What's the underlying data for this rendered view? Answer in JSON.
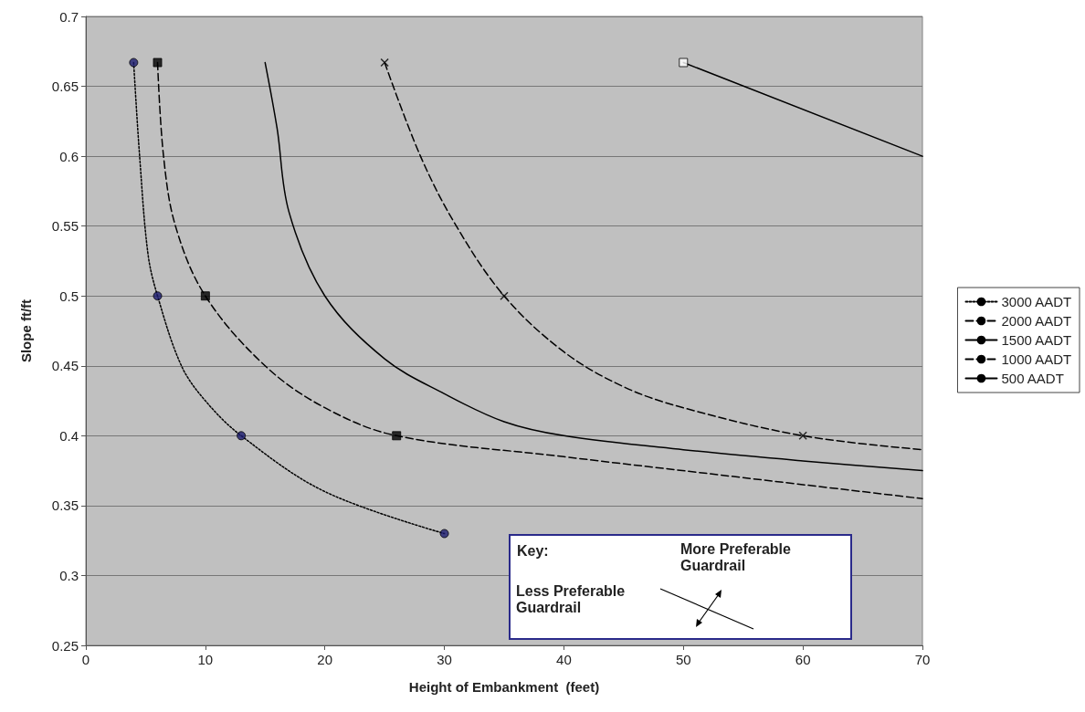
{
  "chart_data": {
    "type": "line",
    "xlabel": "Height of Embankment  (feet)",
    "ylabel": "Slope ft/ft",
    "xlim": [
      0,
      70
    ],
    "xticks": [
      0,
      10,
      20,
      30,
      40,
      50,
      60,
      70
    ],
    "ylim": [
      0.25,
      0.7
    ],
    "yticks": [
      0.25,
      0.3,
      0.35,
      0.4,
      0.45,
      0.5,
      0.55,
      0.6,
      0.65,
      0.7
    ],
    "grid": "y",
    "legend": "right",
    "series": [
      {
        "name": "3000 AADT",
        "color": "#000000",
        "line_style": "dotted",
        "marker": "none",
        "x": [
          4,
          4.5,
          5.2,
          6,
          8,
          10,
          13,
          20,
          30
        ],
        "values": [
          0.667,
          0.6,
          0.53,
          0.5,
          0.45,
          0.425,
          0.4,
          0.36,
          0.33
        ]
      },
      {
        "name": "2000 AADT",
        "color": "#000000",
        "line_style": "dashed",
        "marker": "none",
        "x": [
          6,
          6.5,
          7.5,
          10,
          15,
          20,
          26,
          40,
          55,
          70
        ],
        "values": [
          0.667,
          0.6,
          0.55,
          0.5,
          0.45,
          0.42,
          0.4,
          0.385,
          0.37,
          0.355
        ]
      },
      {
        "name": "1500 AADT",
        "color": "#000000",
        "line_style": "solid",
        "marker": "none",
        "x": [
          15,
          16,
          17,
          20,
          25,
          30,
          35,
          40,
          50,
          60,
          70
        ],
        "values": [
          0.667,
          0.62,
          0.56,
          0.5,
          0.455,
          0.43,
          0.41,
          0.4,
          0.39,
          0.382,
          0.375
        ]
      },
      {
        "name": "1000 AADT",
        "color": "#000000",
        "line_style": "dashed",
        "marker": "none",
        "x": [
          25,
          28,
          31,
          35,
          40,
          45,
          50,
          60,
          70
        ],
        "values": [
          0.667,
          0.6,
          0.55,
          0.5,
          0.46,
          0.435,
          0.42,
          0.4,
          0.39
        ]
      },
      {
        "name": "500 AADT",
        "color": "#000000",
        "line_style": "solid",
        "marker": "none",
        "x": [
          50,
          70
        ],
        "values": [
          0.667,
          0.6
        ]
      },
      {
        "type": "scatter",
        "color": "#1a1a6e",
        "marker": "circle",
        "x": [
          4,
          6,
          13,
          30
        ],
        "values": [
          0.667,
          0.5,
          0.4,
          0.33
        ]
      },
      {
        "type": "scatter",
        "color": "#000000",
        "marker": "square",
        "x": [
          6,
          10,
          26
        ],
        "values": [
          0.667,
          0.5,
          0.4
        ]
      },
      {
        "type": "scatter",
        "color": "#000000",
        "marker": "cross",
        "x": [
          25,
          35,
          60
        ],
        "values": [
          0.667,
          0.5,
          0.4
        ]
      },
      {
        "type": "scatter",
        "color": "#ffffff",
        "marker": "square",
        "x": [
          50
        ],
        "values": [
          0.667
        ]
      }
    ],
    "annotations": [
      "Key:",
      "More Preferable Guardrail",
      "Less Preferable Guardrail"
    ]
  }
}
